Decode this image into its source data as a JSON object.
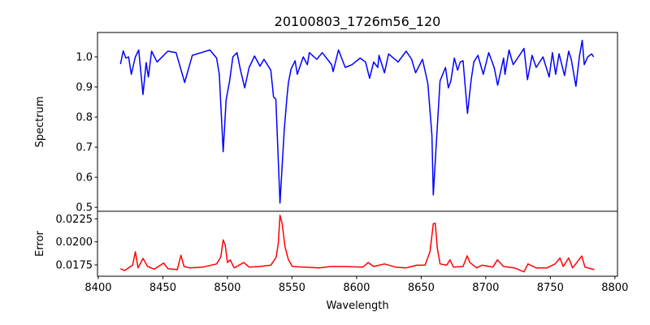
{
  "chart_data": [
    {
      "type": "line",
      "title": "20100803_1726m56_120",
      "xlabel": "",
      "ylabel": "Spectrum",
      "xlim": [
        8399.4,
        8802
      ],
      "ylim": [
        0.487,
        1.081
      ],
      "yticks": [
        0.5,
        0.6,
        0.7,
        0.8,
        0.9,
        1.0
      ],
      "ytick_labels": [
        "0.5",
        "0.6",
        "0.7",
        "0.8",
        "0.9",
        "1.0"
      ],
      "grid": false,
      "series": [
        {
          "name": "Spectrum",
          "color": "#0000ff",
          "x": [
            8417.2,
            8419.3,
            8421.4,
            8423.5,
            8425.6,
            8428.7,
            8431.3,
            8434.6,
            8437.1,
            8438.8,
            8441.3,
            8445.5,
            8453.9,
            8460.2,
            8466.9,
            8472.8,
            8486.4,
            8491.6,
            8493.7,
            8496.7,
            8499.0,
            8501.7,
            8504.2,
            8507.4,
            8510.1,
            8513.4,
            8516.8,
            8521.0,
            8525.2,
            8528.3,
            8533.6,
            8535.7,
            8537.5,
            8540.7,
            8544.0,
            8546.1,
            8547.2,
            8549.3,
            8552.4,
            8554.1,
            8558.7,
            8561.9,
            8563.4,
            8569.2,
            8573.4,
            8580.7,
            8581.8,
            8586.0,
            8591.2,
            8596.5,
            8602.8,
            8606.9,
            8610.1,
            8613.2,
            8616.4,
            8617.4,
            8621.6,
            8624.8,
            8632.1,
            8638.4,
            8642.6,
            8645.7,
            8651.0,
            8655.2,
            8658.3,
            8659.4,
            8662.5,
            8664.6,
            8668.8,
            8671.0,
            8673.0,
            8675.7,
            8678.2,
            8680.3,
            8682.4,
            8685.9,
            8688.7,
            8690.8,
            8693.9,
            8698.1,
            8702.3,
            8706.5,
            8709.2,
            8713.8,
            8714.9,
            8718.0,
            8721.2,
            8727.5,
            8729.6,
            8732.3,
            8735.9,
            8739.0,
            8744.3,
            8749.1,
            8751.6,
            8754.1,
            8756.8,
            8761.0,
            8764.2,
            8766.2,
            8769.8,
            8772.6,
            8774.7,
            8776.3,
            8778.9,
            8782.0,
            8783.5
          ],
          "y": [
            0.976,
            1.02,
            0.996,
            1.0,
            0.942,
            1.0,
            1.023,
            0.875,
            0.981,
            0.933,
            1.019,
            0.983,
            1.019,
            1.014,
            0.915,
            1.005,
            1.023,
            0.996,
            0.942,
            0.685,
            0.857,
            0.92,
            1.0,
            1.014,
            0.956,
            0.897,
            0.965,
            1.003,
            0.969,
            0.992,
            0.956,
            0.866,
            0.86,
            0.514,
            0.76,
            0.866,
            0.915,
            0.96,
            0.987,
            0.942,
            1.0,
            0.974,
            1.014,
            0.992,
            1.014,
            0.974,
            0.951,
            1.023,
            0.965,
            0.974,
            0.996,
            0.983,
            0.929,
            0.983,
            0.965,
            1.005,
            0.947,
            1.01,
            0.983,
            1.019,
            0.992,
            0.947,
            0.992,
            0.911,
            0.74,
            0.541,
            0.767,
            0.92,
            0.965,
            0.897,
            0.92,
            0.996,
            0.956,
            0.983,
            0.987,
            0.812,
            0.924,
            0.983,
            1.005,
            0.942,
            1.014,
            0.965,
            0.906,
            0.996,
            0.942,
            1.023,
            0.974,
            1.014,
            1.028,
            0.924,
            1.005,
            0.965,
            1.0,
            0.933,
            1.014,
            0.942,
            1.01,
            0.938,
            1.019,
            0.992,
            0.902,
            1.005,
            1.055,
            0.974,
            1.0,
            1.01,
            1.0
          ]
        }
      ]
    },
    {
      "type": "line",
      "xlabel": "Wavelength",
      "ylabel": "Error",
      "xlim": [
        8399.4,
        8802
      ],
      "ylim": [
        0.01627,
        0.02332
      ],
      "xticks": [
        8400,
        8450,
        8500,
        8550,
        8600,
        8650,
        8700,
        8750,
        8800
      ],
      "xtick_labels": [
        "8400",
        "8450",
        "8500",
        "8550",
        "8600",
        "8650",
        "8700",
        "8750",
        "8800"
      ],
      "yticks": [
        0.0175,
        0.02,
        0.0225
      ],
      "ytick_labels": [
        "0.0175",
        "0.0200",
        "0.0225"
      ],
      "grid": false,
      "series": [
        {
          "name": "Error",
          "color": "#ff0000",
          "x": [
            8417.2,
            8420.3,
            8426.6,
            8428.7,
            8430.8,
            8434.6,
            8438.2,
            8443.4,
            8450.7,
            8453.9,
            8461.2,
            8464.0,
            8466.4,
            8470.6,
            8481.1,
            8491.6,
            8494.8,
            8496.7,
            8498.3,
            8500.0,
            8502.1,
            8505.2,
            8512.6,
            8516.8,
            8525.2,
            8533.6,
            8537.7,
            8539.4,
            8540.7,
            8542.4,
            8544.5,
            8547.2,
            8550.3,
            8558.7,
            8571.3,
            8579.7,
            8590.2,
            8604.9,
            8609.0,
            8613.2,
            8621.6,
            8630.0,
            8638.4,
            8646.7,
            8653.0,
            8656.8,
            8659.4,
            8660.9,
            8662.5,
            8664.6,
            8669.8,
            8672.3,
            8675.0,
            8682.4,
            8685.6,
            8687.7,
            8692.9,
            8697.1,
            8705.5,
            8709.0,
            8713.8,
            8722.2,
            8729.6,
            8732.7,
            8739.0,
            8747.4,
            8753.7,
            8757.5,
            8760.0,
            8764.2,
            8767.3,
            8770.5,
            8774.3,
            8776.8,
            8784.1
          ],
          "y": [
            0.01709,
            0.01689,
            0.01747,
            0.01892,
            0.01718,
            0.0182,
            0.01733,
            0.01704,
            0.0177,
            0.01709,
            0.01698,
            0.01854,
            0.01733,
            0.01718,
            0.01727,
            0.01761,
            0.01834,
            0.02022,
            0.01965,
            0.01776,
            0.01805,
            0.01718,
            0.01776,
            0.01727,
            0.01733,
            0.01747,
            0.01834,
            0.01993,
            0.02289,
            0.02196,
            0.0195,
            0.01805,
            0.01733,
            0.01727,
            0.01718,
            0.01733,
            0.01733,
            0.01727,
            0.01776,
            0.01733,
            0.01761,
            0.01727,
            0.01718,
            0.01747,
            0.01747,
            0.01892,
            0.02196,
            0.02202,
            0.01935,
            0.01761,
            0.01747,
            0.01805,
            0.01727,
            0.01733,
            0.01848,
            0.01776,
            0.01718,
            0.01747,
            0.01727,
            0.01805,
            0.01733,
            0.01718,
            0.01675,
            0.01761,
            0.01718,
            0.01718,
            0.01761,
            0.01825,
            0.01733,
            0.01825,
            0.01718,
            0.01776,
            0.01846,
            0.01727,
            0.01698
          ]
        }
      ]
    }
  ]
}
